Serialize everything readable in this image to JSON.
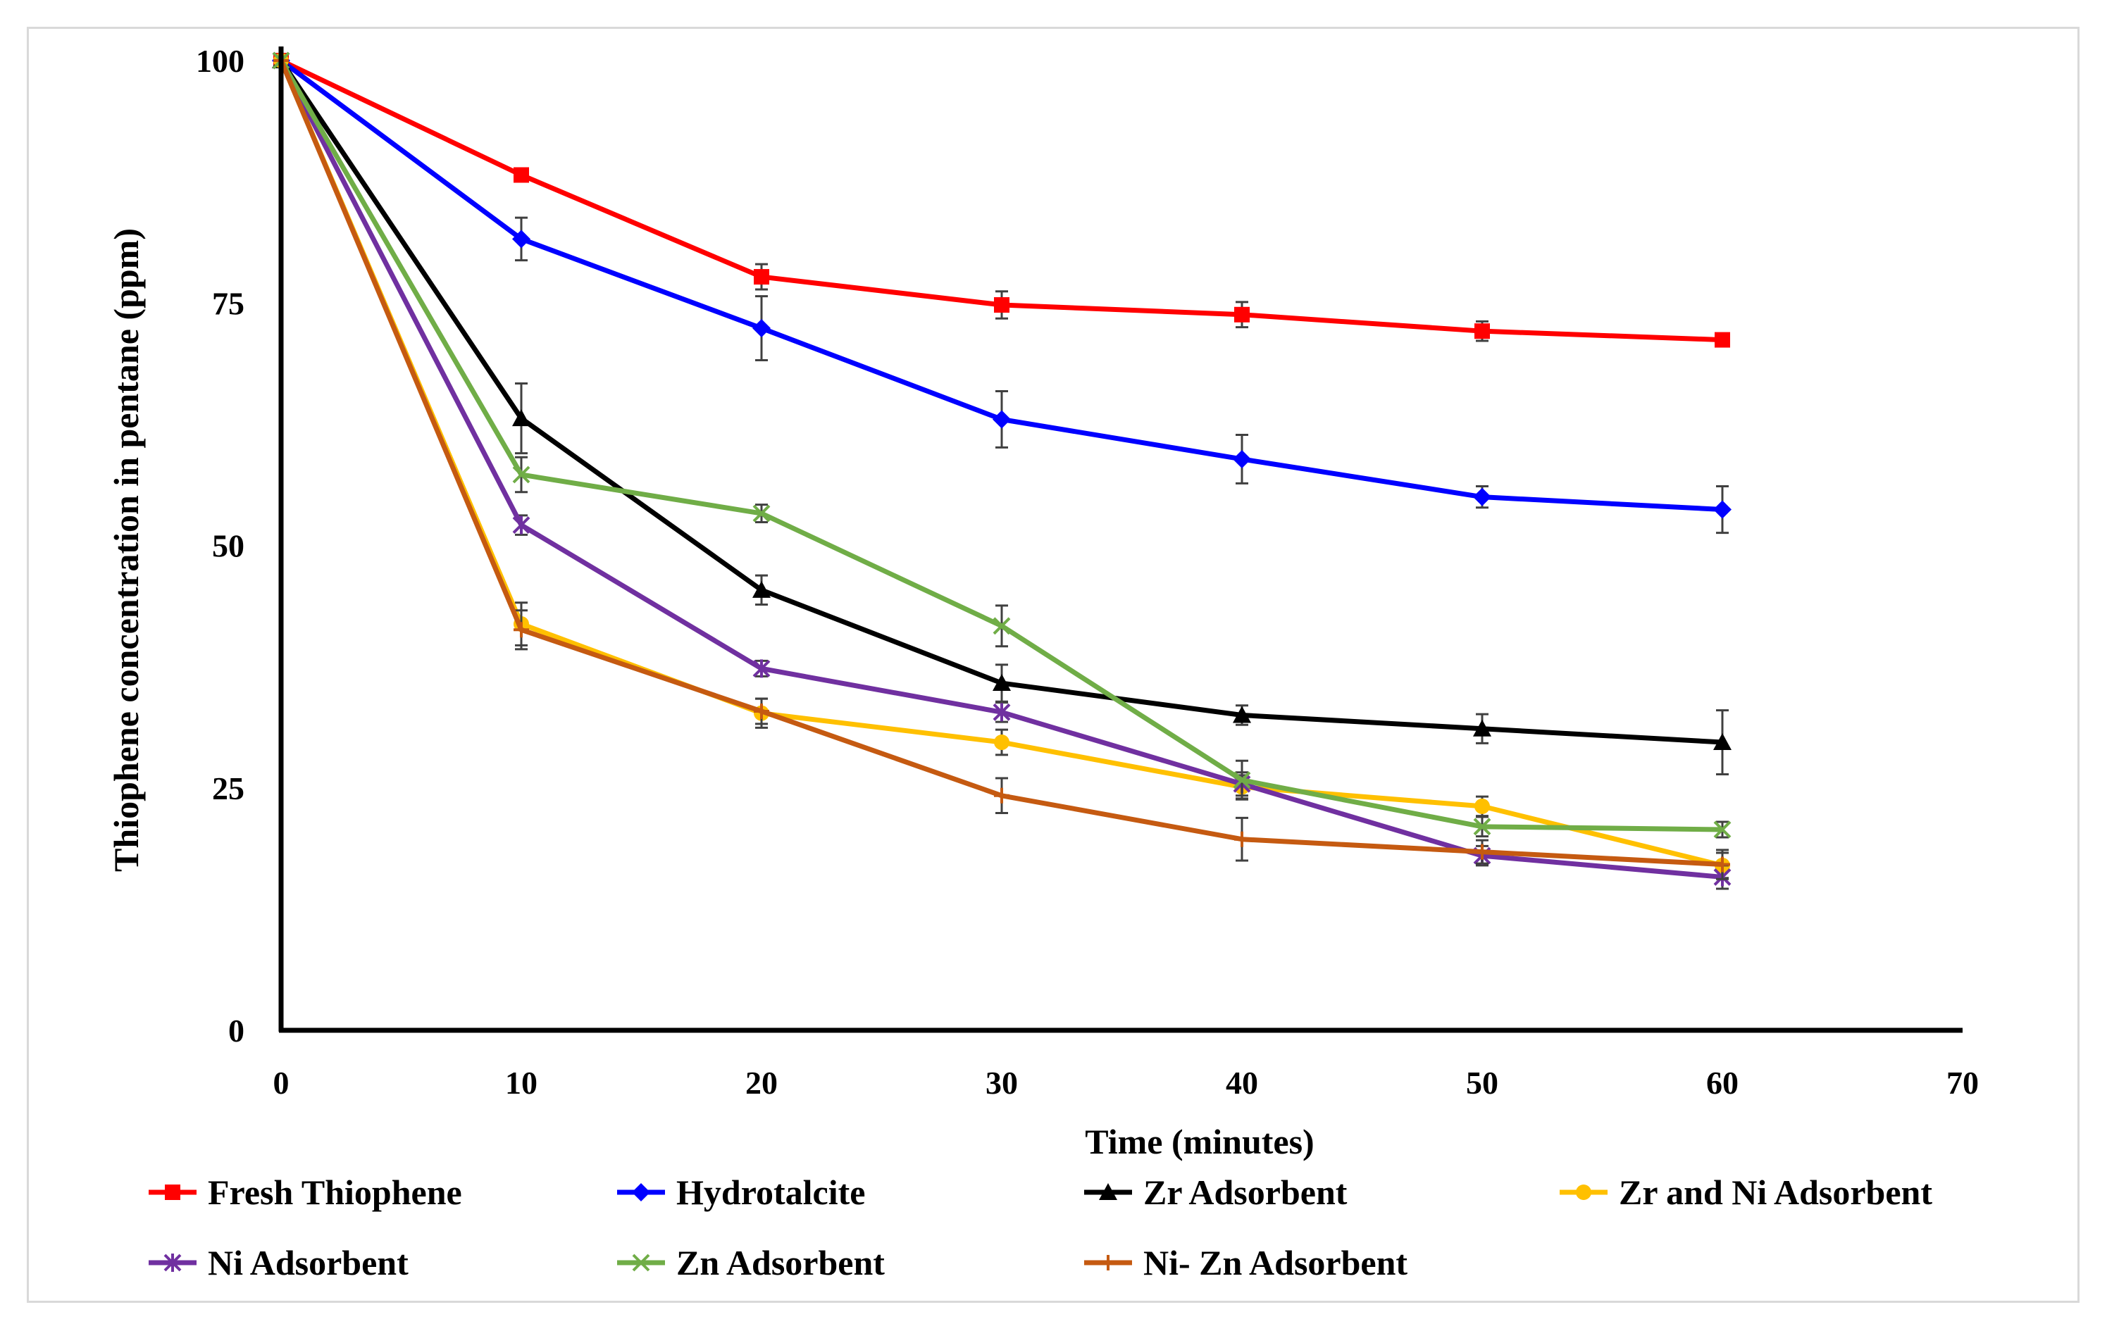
{
  "chart_data": {
    "type": "line",
    "title": "",
    "xlabel": "Time (minutes)",
    "ylabel": "Thiophene concentration in pentane  (ppm)",
    "xlim": [
      0,
      70
    ],
    "ylim": [
      0,
      100
    ],
    "xticks": [
      0,
      10,
      20,
      30,
      40,
      50,
      60,
      70
    ],
    "yticks": [
      0,
      25,
      50,
      75,
      100
    ],
    "grid": false,
    "legend_position": "bottom",
    "x": [
      0,
      10,
      20,
      30,
      40,
      50,
      60
    ],
    "series": [
      {
        "name": "Fresh Thiophene",
        "color": "#ff0000",
        "marker": "square",
        "values": [
          100,
          88.2,
          77.7,
          74.8,
          73.8,
          72.1,
          71.2
        ],
        "errors": [
          0,
          0,
          1.3,
          1.4,
          1.3,
          1.0,
          0
        ]
      },
      {
        "name": "Hydrotalcite",
        "color": "#0000ff",
        "marker": "diamond",
        "values": [
          100,
          81.6,
          72.4,
          63.0,
          58.9,
          55.0,
          53.7
        ],
        "errors": [
          0,
          2.2,
          3.3,
          2.9,
          2.5,
          1.1,
          2.4
        ]
      },
      {
        "name": "Zr Adsorbent",
        "color": "#000000",
        "marker": "triangle",
        "values": [
          100,
          63.1,
          45.4,
          35.8,
          32.5,
          31.1,
          29.7
        ],
        "errors": [
          0,
          3.6,
          1.5,
          1.9,
          1.0,
          1.5,
          3.3
        ]
      },
      {
        "name": "Zr and Ni Adsorbent",
        "color": "#ffc000",
        "marker": "circle",
        "values": [
          100,
          41.9,
          32.7,
          29.7,
          25.1,
          23.1,
          17.0
        ],
        "errors": [
          0,
          2.2,
          1.5,
          1.3,
          1.2,
          1.0,
          1.3
        ]
      },
      {
        "name": "Ni Adsorbent",
        "color": "#7030a0",
        "marker": "star",
        "values": [
          100,
          52.1,
          37.3,
          32.8,
          25.4,
          18.0,
          15.8
        ],
        "errors": [
          0,
          1.0,
          0.8,
          1.0,
          1.2,
          1.0,
          1.2
        ]
      },
      {
        "name": "Zn Adsorbent",
        "color": "#70ad47",
        "marker": "x",
        "values": [
          100,
          57.3,
          53.3,
          41.7,
          25.8,
          21.0,
          20.7
        ],
        "errors": [
          0,
          1.8,
          0.9,
          2.1,
          2.0,
          1.0,
          0.8
        ]
      },
      {
        "name": "Ni- Zn Adsorbent",
        "color": "#c55a11",
        "marker": "plus",
        "values": [
          100,
          41.3,
          32.9,
          24.2,
          19.7,
          18.4,
          17.1
        ],
        "errors": [
          0,
          2.0,
          1.3,
          1.8,
          2.2,
          1.2,
          1.5
        ]
      }
    ]
  }
}
